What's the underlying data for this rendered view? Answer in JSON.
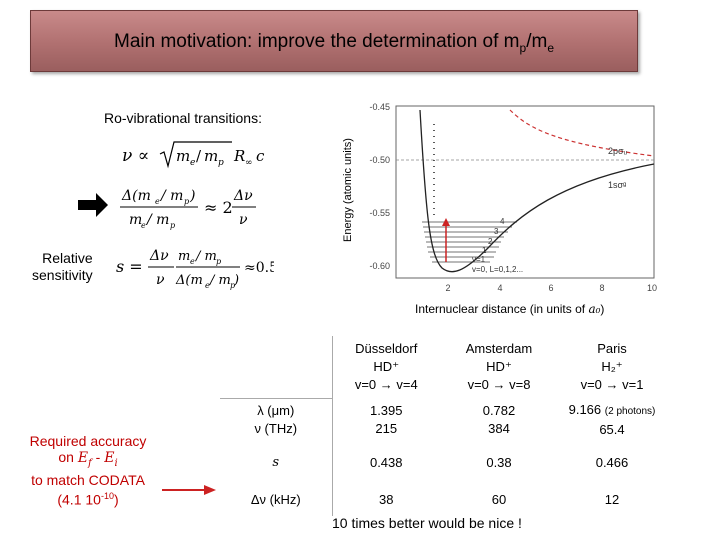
{
  "title": {
    "text": "Main motivation: improve the determination of m",
    "sub1": "p",
    "slash": "/m",
    "sub2": "e"
  },
  "left": {
    "rovib_label": "Ro-vibrational transitions:",
    "relative_label_line1": "Relative",
    "relative_label_line2": "sensitivity"
  },
  "plot": {
    "ylabel": "Energy (atomic units)",
    "xlabel": "Internuclear distance (in units of ",
    "xlabel_unit": "a₀",
    "xlabel_close": ")",
    "yticks": [
      "-0.45",
      "-0.50",
      "-0.55",
      "-0.60"
    ],
    "xticks": [
      "2",
      "4",
      "6",
      "8",
      "10"
    ],
    "curve_labels": {
      "upper": "2pσᵤ",
      "lower": "1sσᵍ"
    },
    "vlabels": [
      "4",
      "3",
      "2",
      "1",
      "v=1",
      "v=0, L=0,1,2..."
    ]
  },
  "table": {
    "headers": [
      {
        "line1": "Düsseldorf",
        "line2": "HD⁺",
        "line3": "v=0 → v=4"
      },
      {
        "line1": "Amsterdam",
        "line2": "HD⁺",
        "line3": "v=0 → v=8"
      },
      {
        "line1": "Paris",
        "line2": "H₂⁺",
        "line3": "v=0 → v=1"
      }
    ],
    "rows": [
      {
        "label1": "λ (μm)",
        "label2": "ν (THz)",
        "cells": [
          [
            "1.395",
            "215"
          ],
          [
            "0.782",
            "384"
          ],
          [
            "9.166",
            "65.4"
          ]
        ],
        "note": "(2 photons)"
      },
      {
        "label1": "s",
        "cells": [
          "0.438",
          "0.38",
          "0.466"
        ]
      },
      {
        "label1": "Δν (kHz)",
        "cells": [
          "38",
          "60",
          "12"
        ]
      }
    ]
  },
  "required": {
    "line1": "Required accuracy",
    "line2a": "on ",
    "ef": "E",
    "ef_sub": "f",
    "minus": " - ",
    "ei": "E",
    "ei_sub": "i",
    "line3": "to match CODATA",
    "line4a": "(4.1 10",
    "line4sup": "-10",
    "line4b": ")"
  },
  "note": "10 times better would be nice !",
  "colors": {
    "title_bg": "#b07070",
    "required_text": "#c00000",
    "arrow": "#cc2222",
    "dashed_curve": "#cc3333"
  }
}
